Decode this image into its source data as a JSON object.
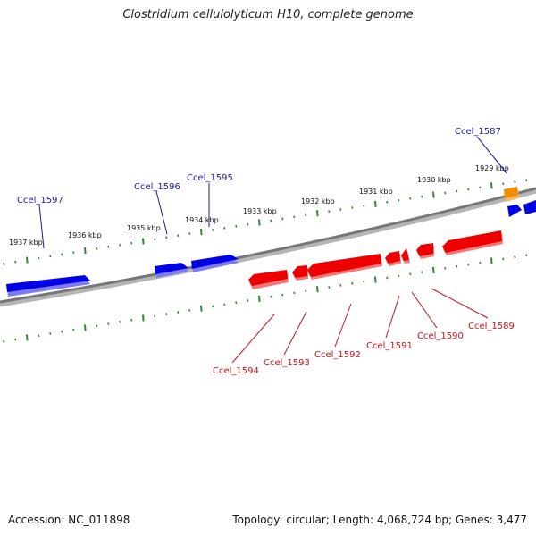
{
  "title": "Clostridium cellulolyticum H10, complete genome",
  "accession": "Accession: NC_011898",
  "summary": "Topology: circular; Length: 4,068,724 bp; Genes: 3,477",
  "colors": {
    "backbone": "#7a7a7a",
    "ticks": "#2e8b2e",
    "forward_gene": "#0000e6",
    "reverse_gene": "#ee0000",
    "other_gene": "#f28c00",
    "forward_label": "#1a1aa8",
    "reverse_label": "#cc1111"
  },
  "scale_labels": [
    "1937 kbp",
    "1936 kbp",
    "1935 kbp",
    "1934 kbp",
    "1933 kbp",
    "1932 kbp",
    "1931 kbp",
    "1930 kbp",
    "1929 kbp"
  ],
  "gene_labels": {
    "forward": [
      "Ccel_1597",
      "Ccel_1596",
      "Ccel_1595",
      "Ccel_1587"
    ],
    "reverse": [
      "Ccel_1594",
      "Ccel_1593",
      "Ccel_1592",
      "Ccel_1591",
      "Ccel_1590",
      "Ccel_1589"
    ]
  }
}
